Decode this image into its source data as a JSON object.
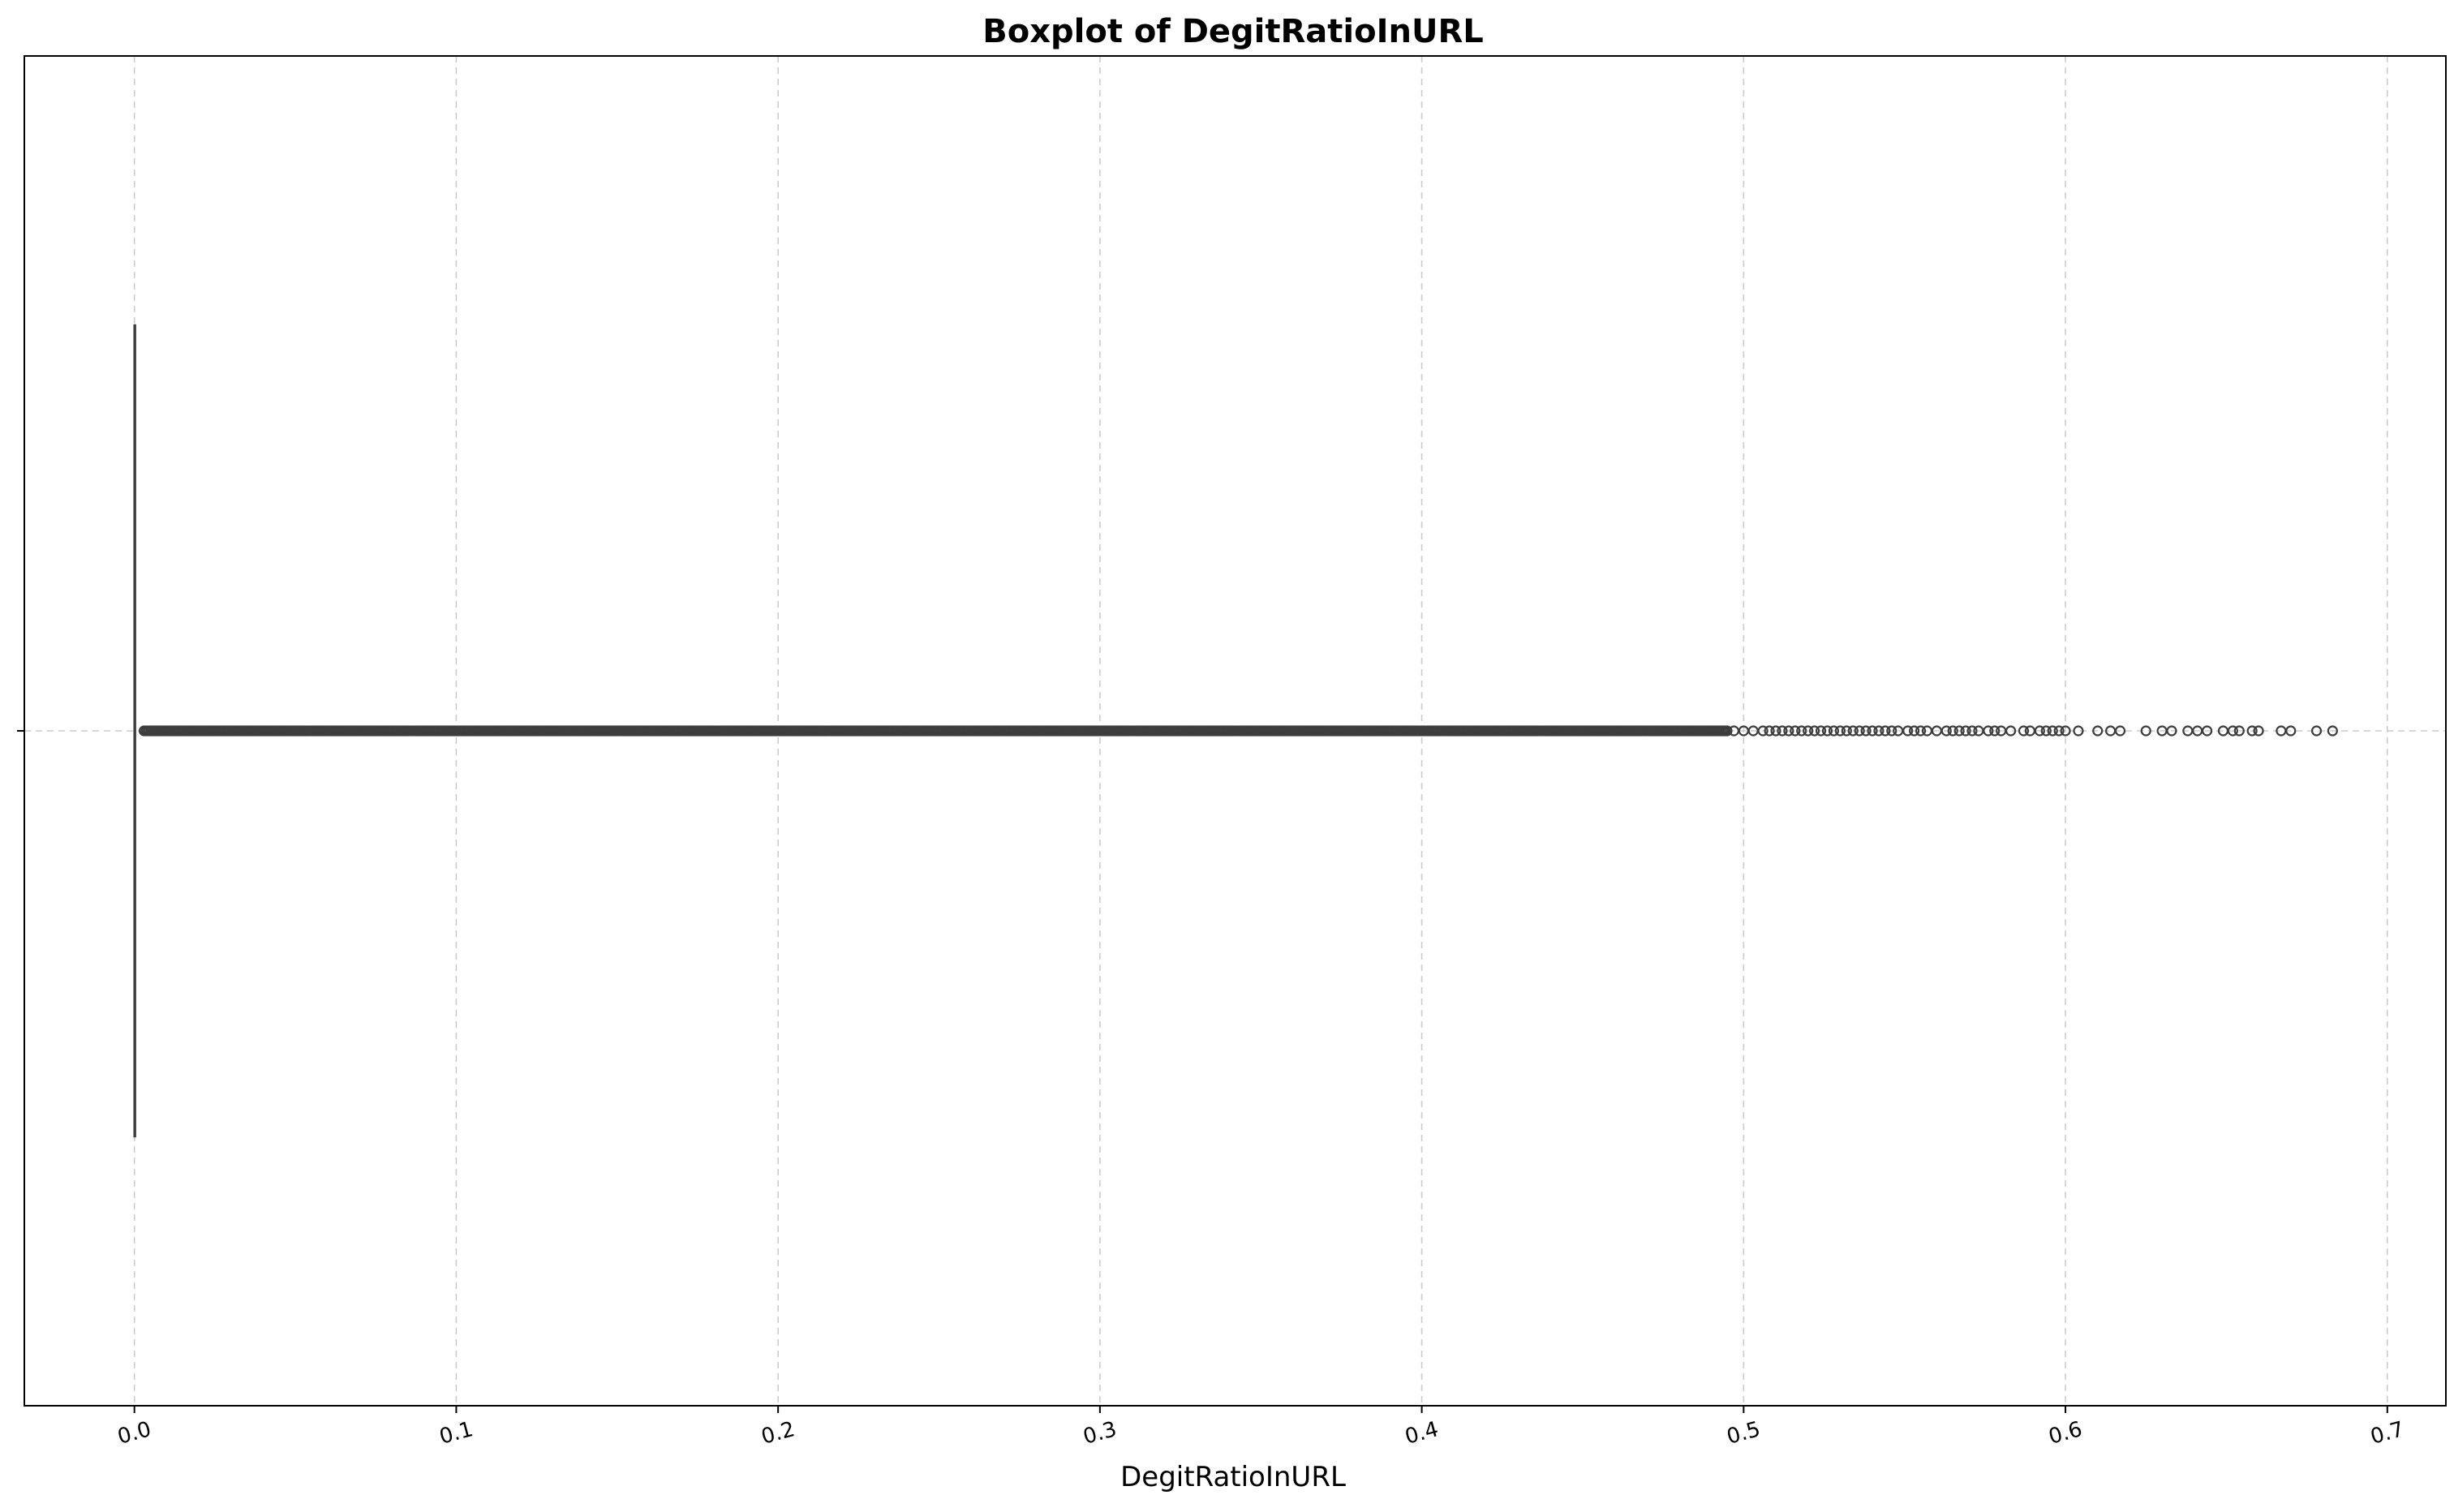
{
  "chart_data": {
    "type": "boxplot",
    "title": "Boxplot of DegitRatioInURL",
    "xlabel": "DegitRatioInURL",
    "ylabel": "",
    "orientation": "horizontal",
    "xlim": [
      -0.0342,
      0.7182
    ],
    "x_ticks": [
      0.0,
      0.1,
      0.2,
      0.3,
      0.4,
      0.5,
      0.6,
      0.7
    ],
    "x_tick_labels": [
      "0.0",
      "0.1",
      "0.2",
      "0.3",
      "0.4",
      "0.5",
      "0.6",
      "0.7"
    ],
    "tick_label_rotation_deg": -15,
    "grid": true,
    "box": {
      "whisker_low": 0.0,
      "q1": 0.0,
      "median": 0.0,
      "q3": 0.0,
      "whisker_high": 0.0
    },
    "outlier_range": [
      0.003,
      0.683
    ],
    "outlier_dense_end": 0.495,
    "outliers_sparse": [
      0.497,
      0.5,
      0.503,
      0.506,
      0.508,
      0.51,
      0.512,
      0.514,
      0.516,
      0.518,
      0.52,
      0.522,
      0.524,
      0.526,
      0.528,
      0.53,
      0.532,
      0.534,
      0.536,
      0.538,
      0.54,
      0.542,
      0.544,
      0.546,
      0.548,
      0.551,
      0.553,
      0.555,
      0.557,
      0.56,
      0.563,
      0.565,
      0.567,
      0.569,
      0.571,
      0.573,
      0.576,
      0.578,
      0.58,
      0.583,
      0.587,
      0.589,
      0.592,
      0.594,
      0.596,
      0.598,
      0.6,
      0.604,
      0.61,
      0.614,
      0.617,
      0.625,
      0.63,
      0.633,
      0.638,
      0.641,
      0.644,
      0.649,
      0.652,
      0.654,
      0.658,
      0.66,
      0.667,
      0.67,
      0.678,
      0.683
    ],
    "colors": {
      "box_edge": "#3d3d3d",
      "outlier_edge": "#3d3d3d",
      "grid": "#cccccc",
      "axes": "#000000",
      "background": "#ffffff"
    }
  }
}
